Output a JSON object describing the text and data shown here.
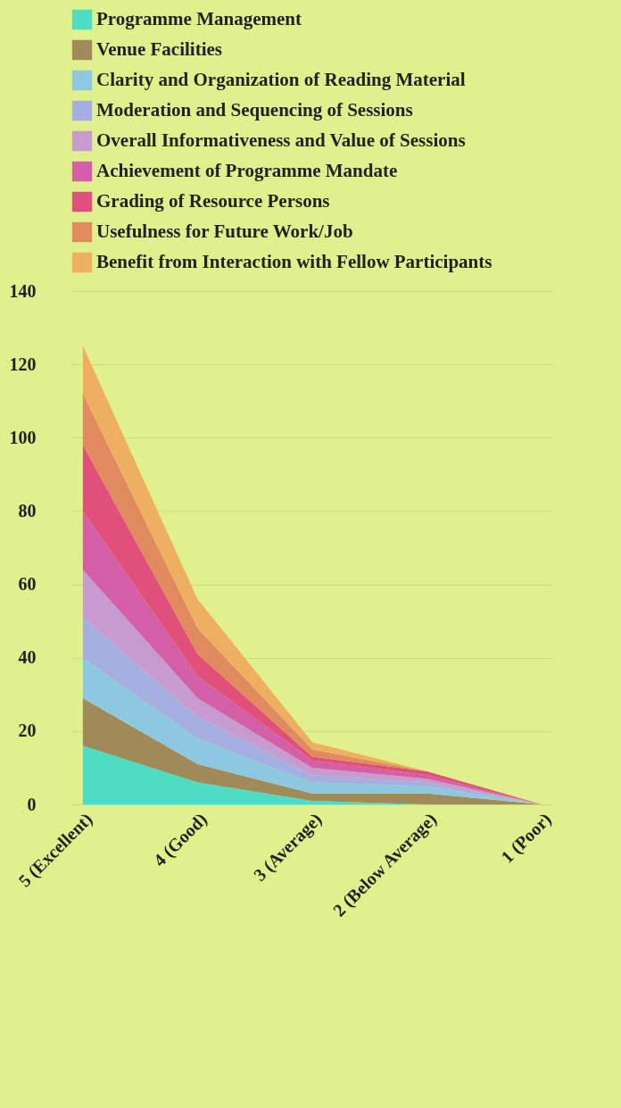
{
  "chart_data": {
    "type": "area",
    "stacked": true,
    "categories": [
      "5 (Excellent)",
      "4 (Good)",
      "3 (Average)",
      "2 (Below Average)",
      "1 (Poor)"
    ],
    "series": [
      {
        "name": "Programme Management",
        "color": "#4fdcc5",
        "values": [
          16,
          6,
          1,
          0,
          0
        ]
      },
      {
        "name": "Venue Facilities",
        "color": "#a08a5a",
        "values": [
          13,
          5,
          2,
          3,
          0
        ]
      },
      {
        "name": "Clarity and Organization of Reading Material",
        "color": "#8ec8e0",
        "values": [
          11,
          7,
          3,
          2,
          0
        ]
      },
      {
        "name": "Moderation and Sequencing of Sessions",
        "color": "#a5aee0",
        "values": [
          11,
          6,
          2,
          1,
          0
        ]
      },
      {
        "name": "Overall Informativeness and Value of Sessions",
        "color": "#c79bd0",
        "values": [
          13,
          5,
          2,
          1,
          0
        ]
      },
      {
        "name": "Achievement of Programme Mandate",
        "color": "#d45fa8",
        "values": [
          16,
          6,
          2,
          1,
          0
        ]
      },
      {
        "name": "Grading of Resource Persons",
        "color": "#e0507a",
        "values": [
          18,
          6,
          1,
          1,
          0
        ]
      },
      {
        "name": "Usefulness for Future Work/Job",
        "color": "#e08a60",
        "values": [
          14,
          7,
          2,
          0,
          0
        ]
      },
      {
        "name": "Benefit from Interaction with Fellow Participants",
        "color": "#eeb060",
        "values": [
          13,
          8,
          2,
          0,
          0
        ]
      }
    ],
    "ylim": [
      0,
      140
    ],
    "yticks": [
      0,
      20,
      40,
      60,
      80,
      100,
      120,
      140
    ],
    "grid": "y",
    "legend": "top"
  }
}
